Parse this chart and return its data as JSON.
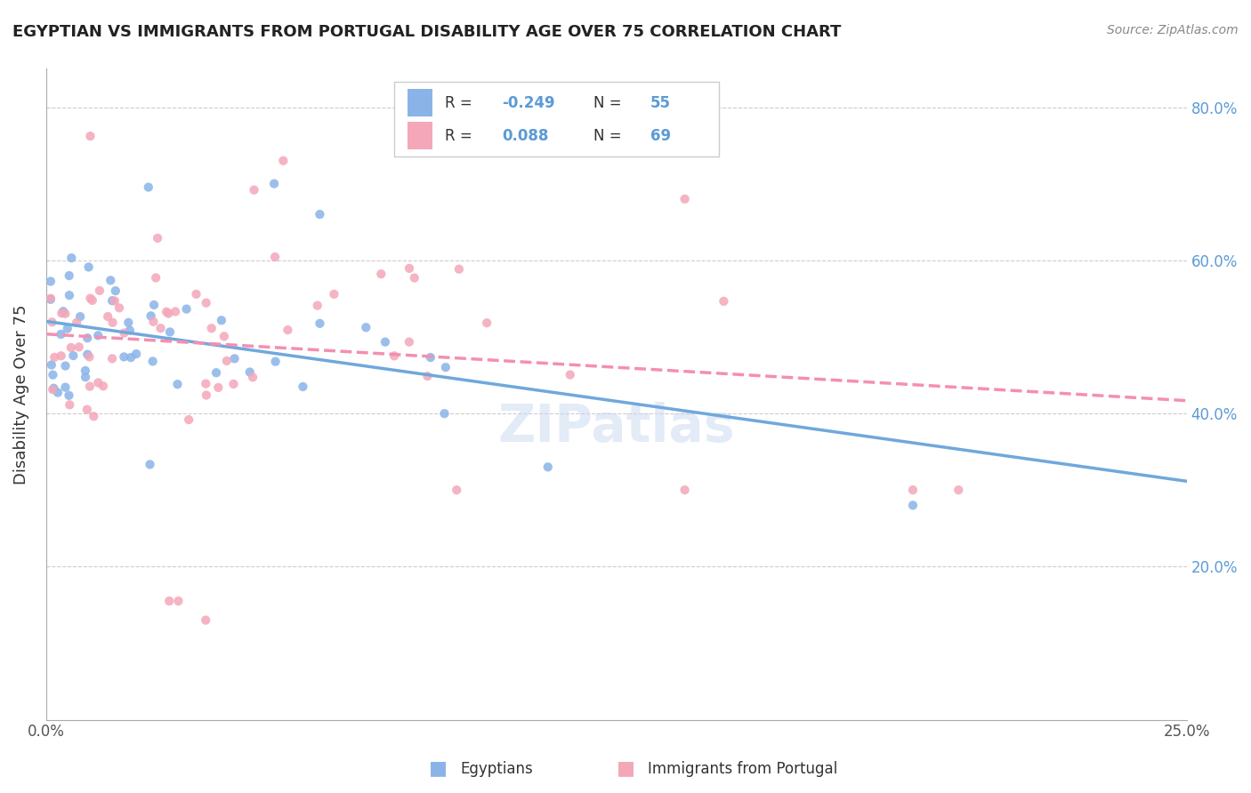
{
  "title": "EGYPTIAN VS IMMIGRANTS FROM PORTUGAL DISABILITY AGE OVER 75 CORRELATION CHART",
  "source": "Source: ZipAtlas.com",
  "ylabel": "Disability Age Over 75",
  "xlim": [
    0.0,
    0.25
  ],
  "ylim": [
    0.0,
    0.85
  ],
  "xtick_positions": [
    0.0,
    0.05,
    0.1,
    0.15,
    0.2,
    0.25
  ],
  "xticklabels": [
    "0.0%",
    "",
    "",
    "",
    "",
    "25.0%"
  ],
  "ytick_right_positions": [
    0.2,
    0.4,
    0.6,
    0.8
  ],
  "ytick_right_labels": [
    "20.0%",
    "40.0%",
    "60.0%",
    "80.0%"
  ],
  "legend_r1": "-0.249",
  "legend_n1": "55",
  "legend_r2": "0.088",
  "legend_n2": "69",
  "color_egyptian": "#8ab4e8",
  "color_portugal": "#f4a7b9",
  "color_line_egyptian": "#6fa8dc",
  "color_line_portugal": "#f48fb1",
  "watermark": "ZIPatlas"
}
